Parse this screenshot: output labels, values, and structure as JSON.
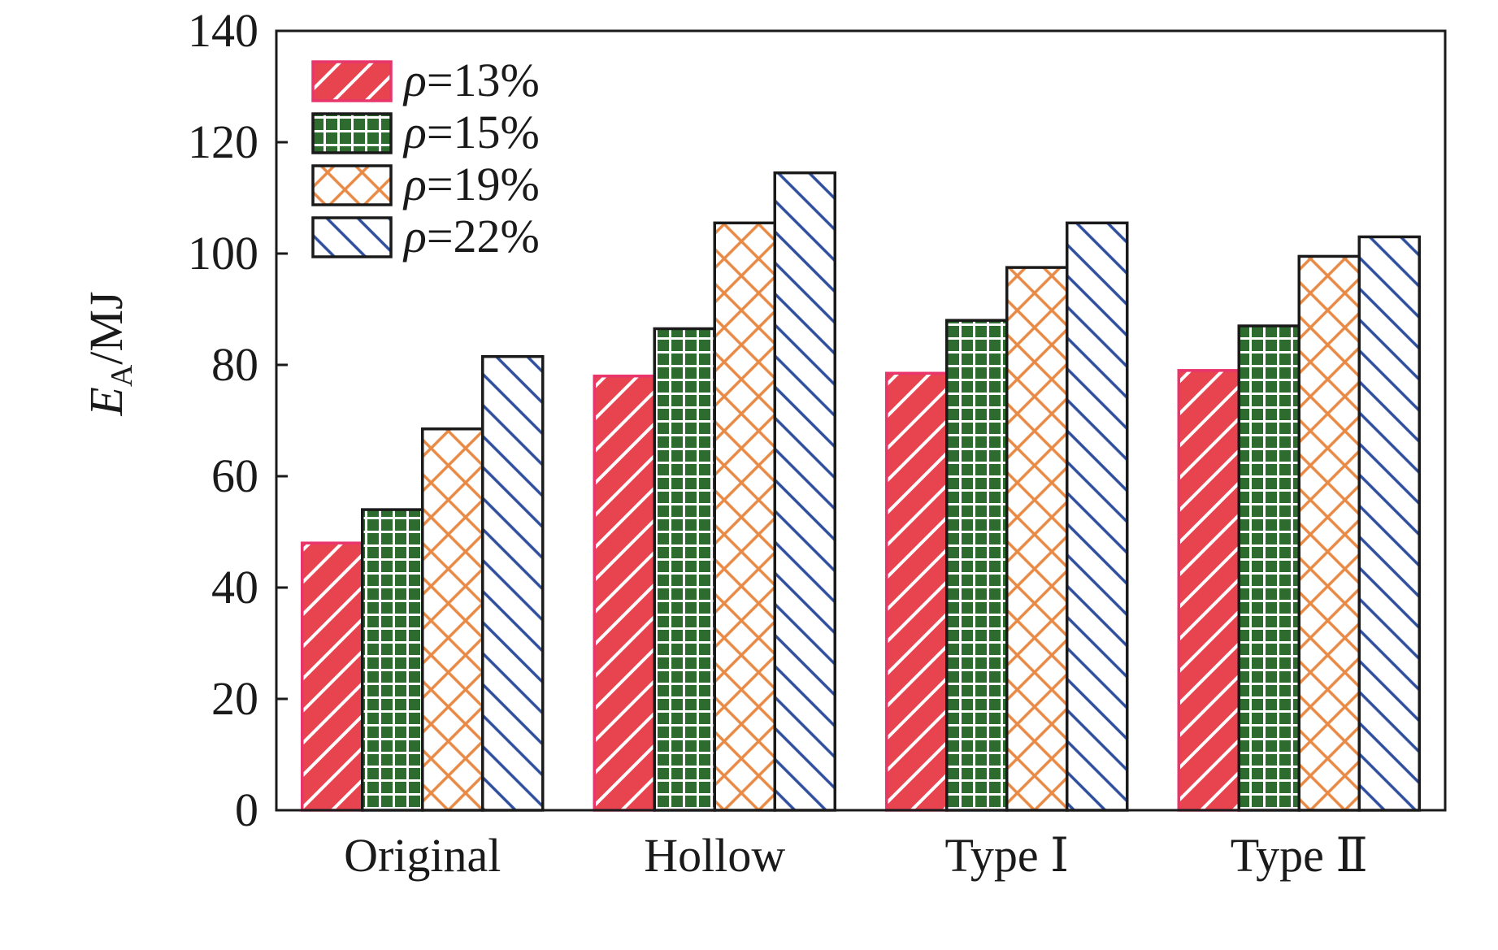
{
  "chart_data": {
    "type": "bar",
    "title": "",
    "xlabel": "",
    "ylabel": {
      "symbol": "E",
      "subscript": "A",
      "unit": "/MJ"
    },
    "ylim": [
      0,
      140
    ],
    "yticks": [
      0,
      20,
      40,
      60,
      80,
      100,
      120,
      140
    ],
    "categories": [
      "Original",
      "Hollow",
      "Type Ⅰ",
      "Type Ⅱ"
    ],
    "legend_position": "top-left",
    "series": [
      {
        "name": "ρ=13%",
        "legend_symbol": "ρ",
        "legend_value": "=13%",
        "pattern": "diagonal-back",
        "fill": "#e8444f",
        "line": "#ffffff",
        "border": "#e8356b",
        "values": [
          48,
          78,
          78.5,
          79
        ]
      },
      {
        "name": "ρ=15%",
        "legend_symbol": "ρ",
        "legend_value": "=15%",
        "pattern": "grid",
        "fill": "#2e6b2e",
        "line": "#ffffff",
        "border": "#1a1a1a",
        "values": [
          54,
          86.5,
          88,
          87
        ]
      },
      {
        "name": "ρ=19%",
        "legend_symbol": "ρ",
        "legend_value": "=19%",
        "pattern": "cross-hatch",
        "fill": "#ffffff",
        "line": "#e88a45",
        "border": "#1a1a1a",
        "values": [
          68.5,
          105.5,
          97.5,
          99.5
        ]
      },
      {
        "name": "ρ=22%",
        "legend_symbol": "ρ",
        "legend_value": "=22%",
        "pattern": "diagonal-forward",
        "fill": "#ffffff",
        "line": "#2f4f9e",
        "border": "#1a1a1a",
        "values": [
          81.5,
          114.5,
          105.5,
          103
        ]
      }
    ]
  }
}
